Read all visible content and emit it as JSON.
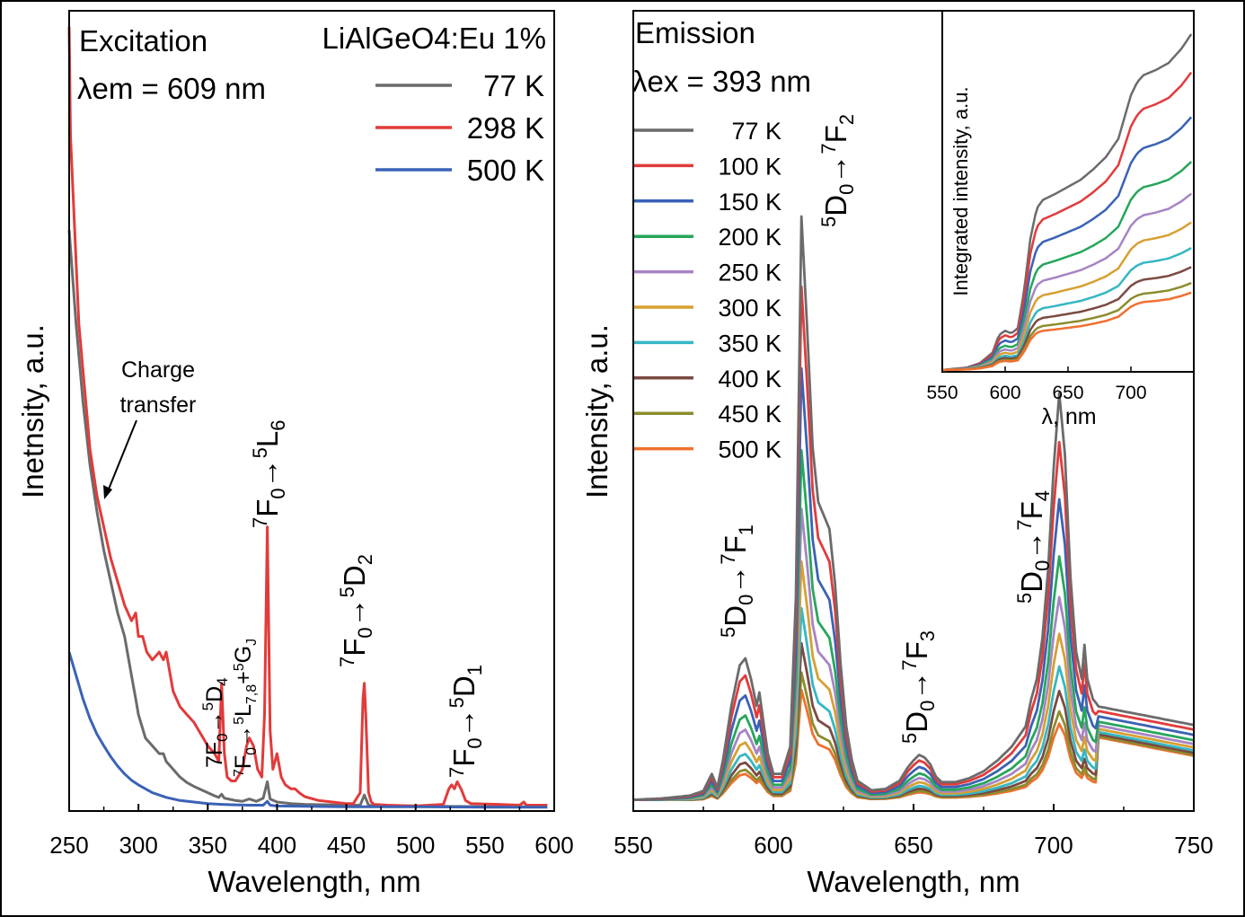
{
  "chart_data": [
    {
      "type": "line",
      "title": "Excitation",
      "condition": "λem = 609 nm",
      "sample": "LiAlGeO4:Eu 1%",
      "xlabel": "Wavelength, nm",
      "ylabel": "Inetnsity, a.u.",
      "xlim": [
        250,
        600
      ],
      "ylim": [
        0,
        100
      ],
      "xticks": [
        "250",
        "300",
        "350",
        "400",
        "450",
        "500",
        "550",
        "600"
      ],
      "legend": "top-right",
      "grid": false,
      "series": [
        {
          "name": "77 K",
          "color": "#6b6b6b",
          "x": [
            250,
            255,
            260,
            265,
            270,
            275,
            280,
            285,
            290,
            295,
            298,
            300,
            305,
            310,
            315,
            318,
            320,
            325,
            330,
            335,
            340,
            345,
            350,
            355,
            358,
            360,
            362,
            365,
            370,
            375,
            380,
            385,
            390,
            393,
            395,
            400,
            410,
            420,
            450,
            460,
            463,
            466,
            470,
            500,
            550,
            595
          ],
          "y": [
            74,
            62,
            52,
            44,
            38,
            33,
            29,
            25,
            22,
            17,
            14,
            12,
            9,
            8,
            7,
            7,
            6,
            5,
            4,
            3.3,
            2.8,
            2.4,
            2,
            1.6,
            1.4,
            1.8,
            1.3,
            1.2,
            1,
            0.9,
            1.2,
            0.9,
            1.3,
            3.4,
            1.2,
            0.8,
            0.6,
            0.5,
            0.4,
            0.4,
            1.7,
            0.4,
            0.3,
            0.3,
            0.2,
            0.2
          ]
        },
        {
          "name": "298 K",
          "color": "#e23b3b",
          "x": [
            250,
            251,
            253,
            255,
            257,
            260,
            263,
            265,
            270,
            275,
            280,
            285,
            290,
            295,
            298,
            300,
            303,
            306,
            310,
            315,
            318,
            320,
            322,
            325,
            330,
            335,
            340,
            345,
            350,
            355,
            358,
            360,
            362,
            364,
            367,
            370,
            375,
            378,
            380,
            383,
            386,
            389,
            391,
            393,
            395,
            397,
            400,
            403,
            406,
            410,
            413,
            416,
            420,
            430,
            440,
            450,
            455,
            460,
            462,
            463,
            464,
            466,
            468,
            470,
            480,
            500,
            520,
            524,
            526,
            528,
            530,
            533,
            536,
            540,
            560,
            575,
            578,
            580,
            590,
            595
          ],
          "y": [
            100,
            86,
            78,
            70,
            62,
            56,
            50,
            46,
            40,
            36,
            32,
            29,
            26,
            24,
            25,
            22,
            22,
            20,
            19,
            20,
            19,
            20,
            18,
            15,
            13,
            12,
            11,
            9.5,
            8,
            7,
            6,
            16,
            7,
            4,
            3.5,
            3.5,
            5,
            8,
            9,
            8,
            5,
            4,
            12,
            36,
            10,
            5,
            7,
            4,
            3,
            2.5,
            2.5,
            2,
            1.5,
            1,
            0.8,
            0.6,
            0.6,
            2,
            14,
            16,
            12,
            2,
            0.8,
            0.5,
            0.4,
            0.3,
            0.5,
            2.5,
            3,
            2.5,
            3.4,
            2.4,
            1,
            0.6,
            0.5,
            0.4,
            0.8,
            0.4,
            0.4,
            0.4
          ]
        },
        {
          "name": "500 K",
          "color": "#3a62b6",
          "x": [
            250,
            255,
            260,
            265,
            270,
            275,
            280,
            285,
            290,
            295,
            300,
            310,
            320,
            330,
            340,
            350,
            360,
            370,
            380,
            390,
            393,
            395,
            400,
            450,
            500,
            550,
            595
          ],
          "y": [
            20,
            17,
            14,
            11.5,
            9.5,
            8,
            6.6,
            5.4,
            4.4,
            3.6,
            3,
            2,
            1.4,
            1,
            0.8,
            0.6,
            0.5,
            0.45,
            0.4,
            0.4,
            0.9,
            0.4,
            0.3,
            0.2,
            0.2,
            0.15,
            0.15
          ]
        }
      ],
      "annotations": [
        "Charge transfer",
        "7F0→5D4",
        "7F0→5L7,8+5GJ",
        "7F0→5L6",
        "7F0→5D2",
        "7F0→5D1"
      ]
    },
    {
      "type": "line",
      "title": "Emission",
      "condition": "λex = 393 nm",
      "xlabel": "Wavelength, nm",
      "ylabel": "Intensity, a.u.",
      "xlim": [
        550,
        750
      ],
      "ylim": [
        0,
        100
      ],
      "xticks": [
        "550",
        "600",
        "650",
        "700",
        "750"
      ],
      "legend": "top-left",
      "grid": false,
      "annotations": [
        "5D0→7F1",
        "5D0→7F2",
        "5D0→7F3",
        "5D0→7F4"
      ],
      "series": [
        {
          "name": "77 K",
          "color": "#6b6b6b",
          "scale": 1.0
        },
        {
          "name": "100 K",
          "color": "#e23b3b",
          "scale": 0.88
        },
        {
          "name": "150 K",
          "color": "#3a62b6",
          "scale": 0.74
        },
        {
          "name": "200 K",
          "color": "#27a65a",
          "scale": 0.6
        },
        {
          "name": "250 K",
          "color": "#a684c4",
          "scale": 0.5
        },
        {
          "name": "300 K",
          "color": "#d6a032",
          "scale": 0.41
        },
        {
          "name": "350 K",
          "color": "#35b7c4",
          "scale": 0.33
        },
        {
          "name": "400 K",
          "color": "#7b4a42",
          "scale": 0.27
        },
        {
          "name": "450 K",
          "color": "#8c8c2e",
          "scale": 0.22
        },
        {
          "name": "500 K",
          "color": "#f07030",
          "scale": 0.19
        }
      ],
      "base_profile": {
        "x": [
          550,
          560,
          570,
          575,
          578,
          580,
          582,
          585,
          588,
          590,
          592,
          594,
          595,
          596,
          598,
          600,
          603,
          606,
          608,
          610,
          612,
          614,
          616,
          618,
          620,
          622,
          624,
          626,
          628,
          630,
          635,
          640,
          645,
          648,
          650,
          652,
          654,
          656,
          658,
          660,
          665,
          670,
          675,
          680,
          685,
          690,
          692,
          694,
          696,
          698,
          700,
          702,
          704,
          706,
          708,
          710,
          711,
          712,
          714,
          716,
          720,
          725,
          730,
          735,
          740,
          745,
          750
        ],
        "y": [
          0.2,
          0.4,
          0.8,
          1.5,
          4,
          2,
          6,
          14,
          20,
          21,
          18,
          14,
          16,
          13,
          7,
          4,
          4,
          8,
          30,
          86,
          70,
          52,
          44,
          42,
          40,
          32,
          20,
          11,
          6,
          3,
          1.6,
          1.8,
          3,
          5,
          6,
          6.8,
          6.4,
          5.4,
          3.6,
          2.8,
          2.8,
          3.4,
          4.4,
          6,
          8,
          11,
          15,
          18,
          24,
          34,
          49,
          60,
          51,
          33,
          22,
          18,
          23,
          18,
          15,
          14,
          14,
          13.5,
          13,
          12.5,
          12,
          11.5,
          11
        ]
      },
      "inset": {
        "type": "line",
        "xlabel": "λ, nm",
        "ylabel": "Integrated intensity, a.u.",
        "xlim": [
          550,
          750
        ],
        "xticks": [
          "550",
          "600",
          "650",
          "700"
        ],
        "profile": {
          "x": [
            550,
            570,
            580,
            590,
            595,
            600,
            605,
            610,
            615,
            620,
            625,
            630,
            640,
            650,
            660,
            670,
            680,
            690,
            695,
            700,
            705,
            710,
            720,
            730,
            740,
            748
          ],
          "y": [
            0,
            0.3,
            0.8,
            2,
            4,
            4.5,
            4.2,
            4.8,
            9,
            15,
            18.5,
            19.5,
            20.2,
            21,
            21.8,
            23,
            24.4,
            26.5,
            29,
            31.5,
            33,
            33.8,
            34.4,
            35.2,
            36.8,
            38.5
          ]
        }
      }
    }
  ]
}
